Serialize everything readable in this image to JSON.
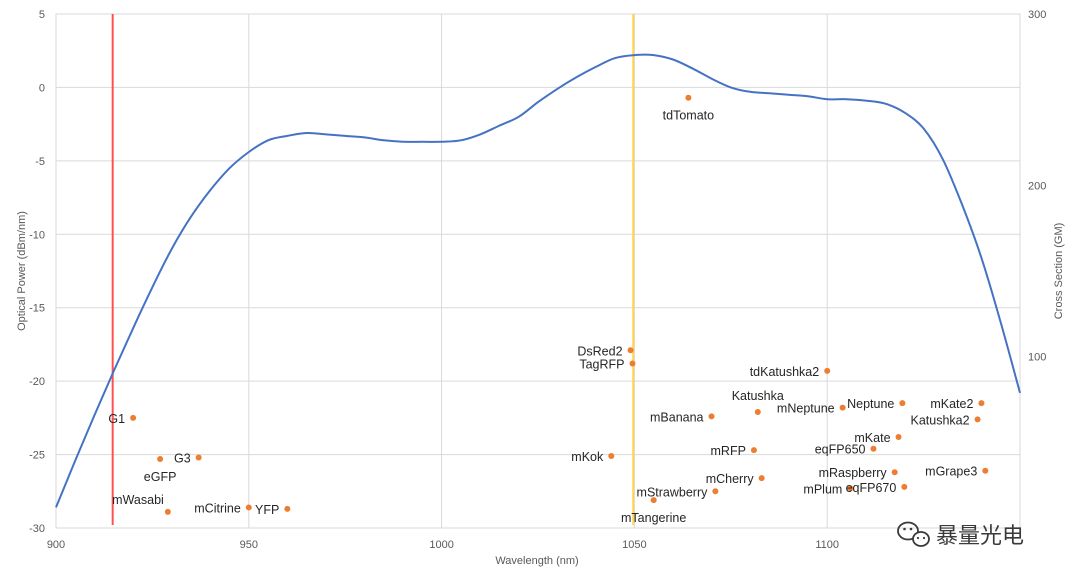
{
  "chart_data": {
    "type": "scatter",
    "title": "",
    "xlabel": "Wavelength (nm)",
    "ylabel": "Optical Power (dBm/nm)",
    "y2label": "Cross Section (GM)",
    "xlim": [
      900,
      1150
    ],
    "ylim": [
      -30,
      5
    ],
    "y2lim": [
      0,
      300
    ],
    "x_ticks": [
      900,
      950,
      1000,
      1050,
      1100
    ],
    "y_ticks": [
      5,
      0,
      -5,
      -10,
      -15,
      -20,
      -25,
      -30
    ],
    "y2_ticks": [
      300,
      200,
      100
    ],
    "vertical_lines": [
      {
        "name": "red-line",
        "x": 914.7,
        "color": "#ff5050"
      },
      {
        "name": "yellow-line",
        "x": 1049.7,
        "color": "#ffd54f"
      }
    ],
    "optical_power_curve": {
      "name": "Optical Power",
      "color": "#4472c4",
      "x": [
        900,
        905,
        910,
        915,
        920,
        925,
        930,
        935,
        940,
        945,
        950,
        955,
        960,
        965,
        970,
        975,
        980,
        985,
        990,
        995,
        1000,
        1005,
        1010,
        1015,
        1020,
        1025,
        1030,
        1035,
        1040,
        1045,
        1050,
        1055,
        1060,
        1065,
        1070,
        1075,
        1080,
        1085,
        1090,
        1095,
        1100,
        1105,
        1110,
        1115,
        1120,
        1125,
        1130,
        1135,
        1140,
        1145,
        1150
      ],
      "y": [
        -28.6,
        -25.4,
        -22.3,
        -19.3,
        -16.4,
        -13.6,
        -11.0,
        -8.8,
        -7.0,
        -5.5,
        -4.4,
        -3.6,
        -3.3,
        -3.1,
        -3.2,
        -3.3,
        -3.4,
        -3.6,
        -3.7,
        -3.7,
        -3.7,
        -3.6,
        -3.2,
        -2.6,
        -2.0,
        -1.0,
        -0.1,
        0.7,
        1.4,
        2.0,
        2.2,
        2.2,
        1.9,
        1.3,
        0.6,
        0.0,
        -0.3,
        -0.4,
        -0.5,
        -0.6,
        -0.8,
        -0.8,
        -0.9,
        -1.1,
        -1.7,
        -2.8,
        -4.9,
        -8.0,
        -11.6,
        -16.0,
        -20.8
      ]
    },
    "points": [
      {
        "label": "G1",
        "x": 920.0,
        "y": -22.5,
        "pos": "left"
      },
      {
        "label": "G3",
        "x": 937.0,
        "y": -25.2,
        "pos": "left"
      },
      {
        "label": "eGFP",
        "x": 927.0,
        "y": -25.3,
        "pos": "below"
      },
      {
        "label": "mWasabi",
        "x": 929.0,
        "y": -28.9,
        "pos": "left-up"
      },
      {
        "label": "mCitrine",
        "x": 950.0,
        "y": -28.6,
        "pos": "left"
      },
      {
        "label": "YFP",
        "x": 960.0,
        "y": -28.7,
        "pos": "left"
      },
      {
        "label": "tdTomato",
        "x": 1064.0,
        "y": -0.7,
        "pos": "below"
      },
      {
        "label": "DsRed2",
        "x": 1049.0,
        "y": -17.9,
        "pos": "left"
      },
      {
        "label": "TagRFP",
        "x": 1049.5,
        "y": -18.8,
        "pos": "left"
      },
      {
        "label": "tdKatushka2",
        "x": 1100.0,
        "y": -19.3,
        "pos": "left"
      },
      {
        "label": "Katushka",
        "x": 1082.0,
        "y": -22.1,
        "pos": "above"
      },
      {
        "label": "mBanana",
        "x": 1070.0,
        "y": -22.4,
        "pos": "left"
      },
      {
        "label": "mNeptune",
        "x": 1104.0,
        "y": -21.8,
        "pos": "left"
      },
      {
        "label": "Neptune",
        "x": 1119.5,
        "y": -21.5,
        "pos": "left"
      },
      {
        "label": "mKate2",
        "x": 1140.0,
        "y": -21.5,
        "pos": "left"
      },
      {
        "label": "Katushka2",
        "x": 1139.0,
        "y": -22.6,
        "pos": "left"
      },
      {
        "label": "mKate",
        "x": 1118.5,
        "y": -23.8,
        "pos": "left"
      },
      {
        "label": "eqFP650",
        "x": 1112.0,
        "y": -24.6,
        "pos": "left"
      },
      {
        "label": "mRFP",
        "x": 1081.0,
        "y": -24.7,
        "pos": "left"
      },
      {
        "label": "mKok",
        "x": 1044.0,
        "y": -25.1,
        "pos": "left"
      },
      {
        "label": "mGrape3",
        "x": 1141.0,
        "y": -26.1,
        "pos": "left"
      },
      {
        "label": "mCherry",
        "x": 1083.0,
        "y": -26.6,
        "pos": "left"
      },
      {
        "label": "mRaspberry",
        "x": 1117.5,
        "y": -26.2,
        "pos": "left"
      },
      {
        "label": "eqFP670",
        "x": 1120.0,
        "y": -27.2,
        "pos": "left"
      },
      {
        "label": "mPlum",
        "x": 1106.0,
        "y": -27.3,
        "pos": "left"
      },
      {
        "label": "mStrawberry",
        "x": 1071.0,
        "y": -27.5,
        "pos": "left"
      },
      {
        "label": "mTangerine",
        "x": 1055.0,
        "y": -28.1,
        "pos": "below"
      }
    ],
    "point_color": "#ed7d31"
  },
  "watermark": {
    "text": "暴量光电",
    "icon": "wechat-icon"
  },
  "colors": {
    "grid": "#d9d9d9",
    "axis": "#bfbfbf",
    "curve": "#4472c4",
    "points": "#ed7d31"
  }
}
